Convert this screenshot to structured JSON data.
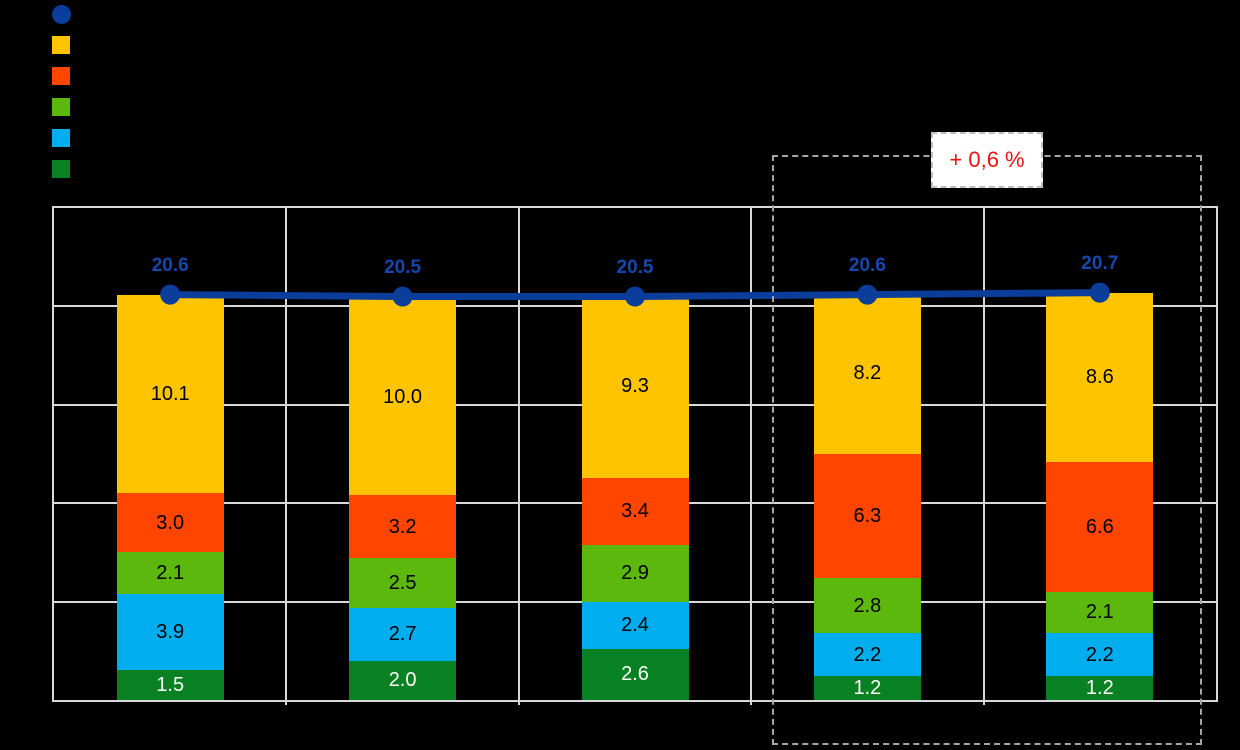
{
  "chart_data": {
    "type": "bar",
    "subtype": "stacked-bars-with-total-line",
    "categories": [
      "",
      "",
      "",
      "",
      ""
    ],
    "x_axis_labels_visible": false,
    "legend_position": "top-left",
    "grid": "on",
    "grid_color": "#D9D9D9",
    "background_color": "#000000",
    "ylim": [
      0,
      25
    ],
    "grid_step": 5,
    "series": [
      {
        "name": "",
        "legend_marker": "circle",
        "type": "line",
        "color": "#0B3D9B",
        "label_color": "#1747AE",
        "values": [
          "20.6",
          "20.5",
          "20.5",
          "20.6",
          "20.7"
        ]
      },
      {
        "name": "",
        "legend_marker": "square",
        "type": "bar-top",
        "color": "#FFC400",
        "value_text_color": "#000000",
        "values": [
          "10.1",
          "10.0",
          "9.3",
          "8.2",
          "8.6"
        ]
      },
      {
        "name": "",
        "legend_marker": "square",
        "type": "bar",
        "color": "#FF4500",
        "value_text_color": "#000000",
        "values": [
          "3.0",
          "3.2",
          "3.4",
          "6.3",
          "6.6"
        ]
      },
      {
        "name": "",
        "legend_marker": "square",
        "type": "bar",
        "color": "#5CB80C",
        "value_text_color": "#000000",
        "values": [
          "2.1",
          "2.5",
          "2.9",
          "2.8",
          "2.1"
        ]
      },
      {
        "name": "",
        "legend_marker": "square",
        "type": "bar",
        "color": "#00AEEF",
        "value_text_color": "#000000",
        "values": [
          "3.9",
          "2.7",
          "2.4",
          "2.2",
          "2.2"
        ]
      },
      {
        "name": "",
        "legend_marker": "square",
        "type": "bar-bottom",
        "color": "#078121",
        "value_text_color": "#FFFFFF",
        "values": [
          "1.5",
          "2.0",
          "2.6",
          "1.2",
          "1.2"
        ]
      }
    ],
    "annotation": {
      "text": "+ 0,6 %",
      "text_color": "#EE1111",
      "box_background": "#FFFFFF",
      "box_border": "dashed gray"
    },
    "highlight_box": {
      "style": "dashed",
      "color": "#A6A6A6",
      "covers_categories": [
        3,
        4
      ]
    }
  },
  "legend": {
    "items": [
      {
        "label": "",
        "marker": "circle",
        "color": "#0B3D9B"
      },
      {
        "label": "",
        "marker": "square",
        "color": "#FFC400"
      },
      {
        "label": "",
        "marker": "square",
        "color": "#FF4500"
      },
      {
        "label": "",
        "marker": "square",
        "color": "#5CB80C"
      },
      {
        "label": "",
        "marker": "square",
        "color": "#00AEEF"
      },
      {
        "label": "",
        "marker": "square",
        "color": "#078121"
      }
    ]
  }
}
